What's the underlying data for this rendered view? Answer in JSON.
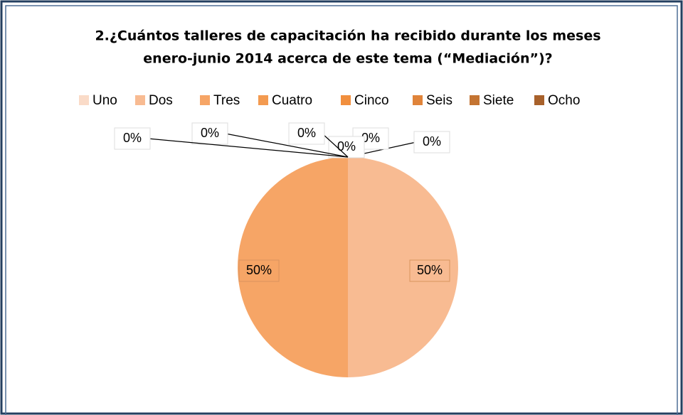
{
  "chart_data": {
    "type": "pie",
    "title": [
      "2.¿Cuántos talleres de capacitación ha recibido durante los meses",
      "enero-junio 2014 acerca de este tema (“Mediación”)?"
    ],
    "categories": [
      "Uno",
      "Dos",
      "Tres",
      "Cuatro",
      "Cinco",
      "Seis",
      "Siete",
      "Ocho"
    ],
    "values": [
      0,
      50,
      50,
      0,
      0,
      0,
      0,
      0
    ],
    "value_labels": [
      "0%",
      "50%",
      "50%",
      "0%",
      "0%",
      "0%",
      "0%",
      "0%"
    ],
    "colors": [
      "#fadbc8",
      "#f8bb92",
      "#f6a566",
      "#f39a50",
      "#f18f3e",
      "#e0843a",
      "#c47432",
      "#a8612b"
    ],
    "legend": "top"
  }
}
